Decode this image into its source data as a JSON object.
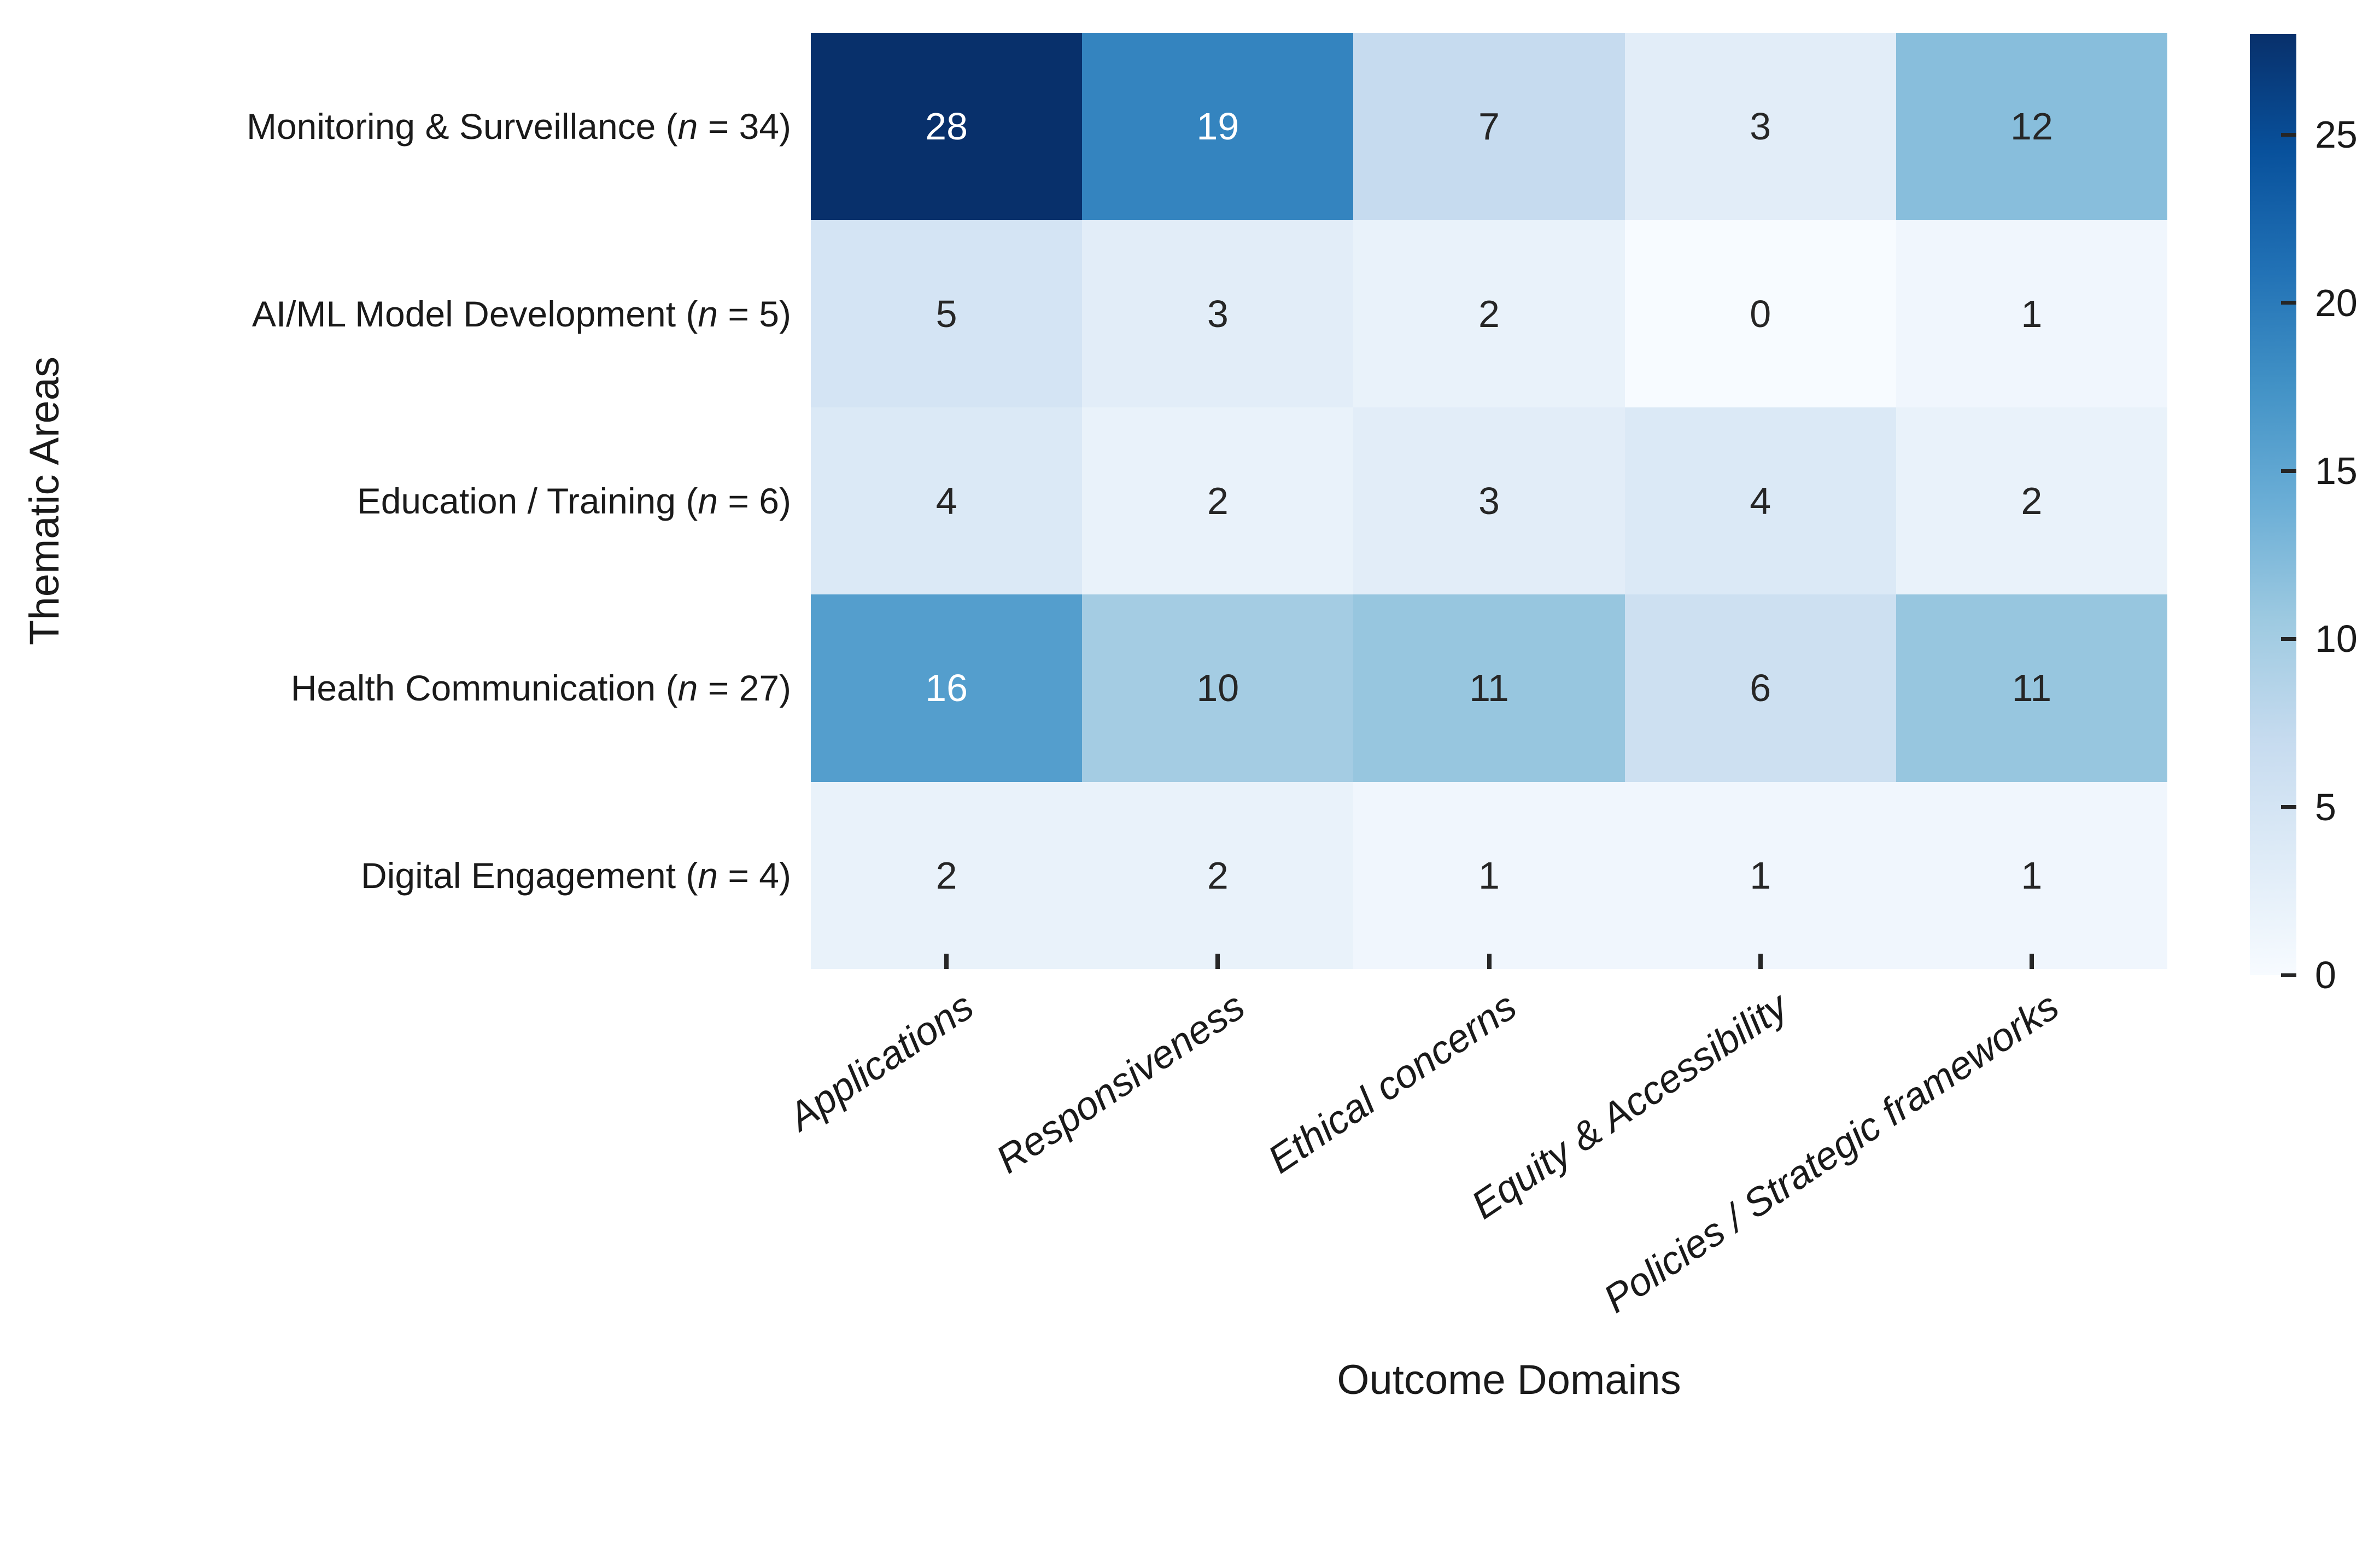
{
  "chart_data": {
    "type": "heatmap",
    "title": "",
    "xlabel": "Outcome Domains",
    "ylabel": "Thematic Areas",
    "rows": [
      {
        "area": "Monitoring & Surveillance",
        "n": 34,
        "label": "Monitoring & Surveillance (n = 34)"
      },
      {
        "area": "AI/ML Model Development",
        "n": 5,
        "label": "AI/ML Model Development (n = 5)"
      },
      {
        "area": "Education / Training",
        "n": 6,
        "label": "Education / Training (n = 6)"
      },
      {
        "area": "Health Communication",
        "n": 27,
        "label": "Health Communication (n = 27)"
      },
      {
        "area": "Digital Engagement",
        "n": 4,
        "label": "Digital Engagement (n = 4)"
      }
    ],
    "categories": [
      "Applications",
      "Responsiveness",
      "Ethical concerns",
      "Equity & Accessibility",
      "Policies / Strategic frameworks"
    ],
    "values": [
      [
        28,
        19,
        7,
        3,
        12
      ],
      [
        5,
        3,
        2,
        0,
        1
      ],
      [
        4,
        2,
        3,
        4,
        2
      ],
      [
        16,
        10,
        11,
        6,
        11
      ],
      [
        2,
        2,
        1,
        1,
        1
      ]
    ],
    "colorbar": {
      "ticks": [
        0,
        5,
        10,
        15,
        20,
        25
      ],
      "vmin": 0,
      "vmax": 28,
      "position": "right"
    },
    "grid": "off",
    "colors": {
      "colormap_name": "Blues",
      "colormap_stops": [
        "#f7fbff",
        "#deebf7",
        "#c6dbef",
        "#9ecae1",
        "#6baed6",
        "#4292c6",
        "#2171b5",
        "#08519c",
        "#08306b"
      ],
      "annotation_dark": "#262626",
      "annotation_light": "#ffffff",
      "tick": "#262626",
      "label": "#1a1a1a",
      "background": "#ffffff"
    }
  }
}
